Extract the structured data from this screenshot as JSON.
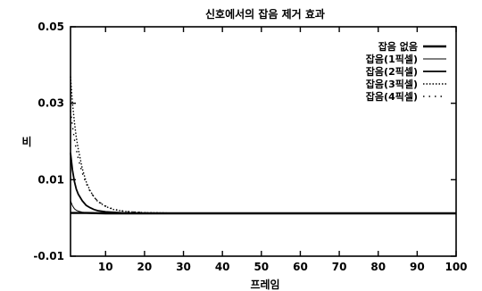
{
  "chart_data": {
    "type": "line",
    "title": "신호에서의 잡음 제거 효과",
    "xlabel": "프레임",
    "ylabel": "비",
    "xlim": [
      1,
      100
    ],
    "ylim": [
      -0.01,
      0.05
    ],
    "x_ticks": [
      10,
      20,
      30,
      40,
      50,
      60,
      70,
      80,
      90,
      100
    ],
    "y_ticks": [
      -0.01,
      0.01,
      0.03,
      0.05
    ],
    "x_tick_labels": [
      "10",
      "20",
      "30",
      "40",
      "50",
      "60",
      "70",
      "80",
      "90",
      "100"
    ],
    "y_tick_labels": [
      "-0.01",
      "0.01",
      "0.03",
      "0.05"
    ],
    "grid": false,
    "legend_position": "top-right",
    "series": [
      {
        "name": "잡음 없음",
        "color": "#000000",
        "x": [
          1,
          2,
          3,
          5,
          10,
          20,
          50,
          100
        ],
        "values": [
          0.0013,
          0.0013,
          0.0013,
          0.0013,
          0.0012,
          0.0012,
          0.0012,
          0.0012
        ]
      },
      {
        "name": "잡음(1픽셀)",
        "color": "#000000",
        "x": [
          1,
          1.5,
          2,
          2.5,
          3,
          4,
          5,
          7,
          10,
          15,
          20,
          50,
          100
        ],
        "values": [
          0.0045,
          0.0032,
          0.0024,
          0.002,
          0.0018,
          0.0015,
          0.0014,
          0.0013,
          0.0013,
          0.0012,
          0.0012,
          0.0012,
          0.0012
        ]
      },
      {
        "name": "잡음(2픽셀)",
        "color": "#000000",
        "x": [
          1,
          1.5,
          2,
          2.5,
          3,
          4,
          5,
          6,
          7,
          8,
          10,
          15,
          20,
          50,
          100
        ],
        "values": [
          0.017,
          0.0125,
          0.0095,
          0.0075,
          0.0062,
          0.0045,
          0.0033,
          0.0027,
          0.0022,
          0.0019,
          0.0016,
          0.0013,
          0.0012,
          0.0012,
          0.0012
        ]
      },
      {
        "name": "잡음(3픽셀)",
        "color": "#000000",
        "x": [
          1,
          1.5,
          2,
          2.5,
          3,
          4,
          5,
          6,
          7,
          8,
          10,
          12,
          15,
          20,
          30,
          50,
          100
        ],
        "values": [
          0.037,
          0.03,
          0.025,
          0.021,
          0.018,
          0.013,
          0.0095,
          0.0072,
          0.0055,
          0.0043,
          0.003,
          0.0022,
          0.0017,
          0.0014,
          0.0012,
          0.0012,
          0.0012
        ]
      },
      {
        "name": "잡음(4픽셀)",
        "color": "#000000",
        "x": [
          1,
          1.5,
          2,
          2.5,
          3,
          4,
          5,
          6,
          7,
          8,
          10,
          12,
          15,
          20,
          30,
          50,
          100
        ],
        "values": [
          0.028,
          0.024,
          0.0205,
          0.0178,
          0.0155,
          0.0118,
          0.009,
          0.007,
          0.0055,
          0.0044,
          0.0031,
          0.0023,
          0.0017,
          0.0014,
          0.0012,
          0.0012,
          0.0012
        ]
      }
    ]
  }
}
